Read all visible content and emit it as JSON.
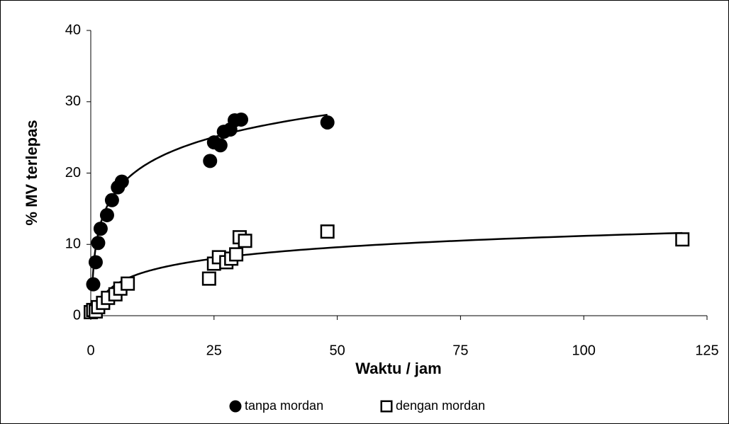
{
  "chart_data": {
    "type": "scatter",
    "xlabel": "Waktu / jam",
    "ylabel": "% MV terlepas",
    "xlim": [
      0,
      125
    ],
    "xticks": [
      0,
      25,
      50,
      75,
      100,
      125
    ],
    "ylim": [
      0,
      40
    ],
    "yticks": [
      0,
      10,
      20,
      30,
      40
    ],
    "legend": "bottom",
    "series": [
      {
        "name": "tanpa mordan",
        "color": "#000000",
        "marker": "circle",
        "x": [
          0.5,
          1,
          1.5,
          2,
          3.3,
          4.3,
          5.5,
          6.3,
          24.2,
          25,
          26.3,
          27,
          28.3,
          29.2,
          30.5,
          48
        ],
        "values": [
          4.4,
          7.5,
          10.2,
          12.2,
          14.1,
          16.2,
          18,
          18.8,
          21.7,
          24.3,
          23.9,
          25.8,
          26.1,
          27.4,
          27.5,
          27.1
        ],
        "trendline": {
          "kind": "log",
          "a": 4.8,
          "b": 9.6,
          "range": [
            0.3,
            48
          ]
        }
      },
      {
        "name": "dengan mordan",
        "color": "#000000",
        "marker": "square",
        "x": [
          0,
          0.5,
          1,
          1.5,
          2.5,
          3.5,
          5,
          6,
          7.5,
          24,
          25,
          26,
          27.5,
          28.5,
          29.5,
          30.2,
          31.3,
          48,
          120
        ],
        "values": [
          0.5,
          0.8,
          0.6,
          1.2,
          1.8,
          2.5,
          3,
          3.8,
          4.5,
          5.2,
          7.3,
          8.2,
          7.5,
          8,
          8.6,
          11,
          10.5,
          11.8,
          10.7
        ],
        "trendline": {
          "kind": "log",
          "a": 2.29,
          "b": 0.64,
          "range": [
            0.76,
            120
          ]
        }
      }
    ]
  }
}
